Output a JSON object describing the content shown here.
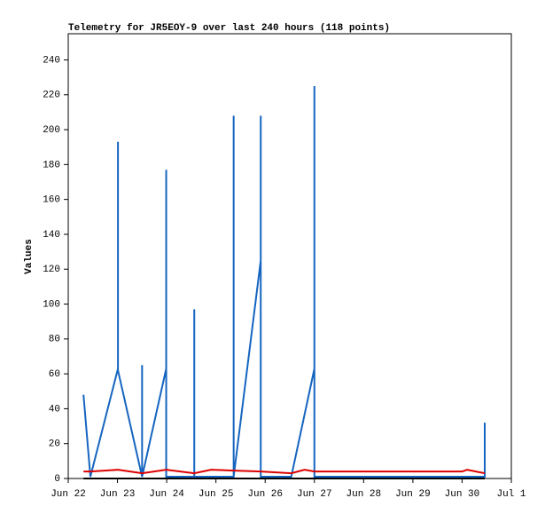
{
  "chart_data": {
    "type": "line",
    "title": "Telemetry for JR5EOY-9 over last 240 hours (118 points)",
    "y_label": "Values",
    "xlim": [
      0,
      9
    ],
    "ylim": [
      0,
      255
    ],
    "xticks": [
      {
        "value": 0,
        "label": "Jun 22"
      },
      {
        "value": 1,
        "label": "Jun 23"
      },
      {
        "value": 2,
        "label": "Jun 24"
      },
      {
        "value": 3,
        "label": "Jun 25"
      },
      {
        "value": 4,
        "label": "Jun 26"
      },
      {
        "value": 5,
        "label": "Jun 27"
      },
      {
        "value": 6,
        "label": "Jun 28"
      },
      {
        "value": 7,
        "label": "Jun 29"
      },
      {
        "value": 8,
        "label": "Jun 30"
      },
      {
        "value": 9,
        "label": "Jul 1"
      }
    ],
    "yticks": [
      0,
      20,
      40,
      60,
      80,
      100,
      120,
      140,
      160,
      180,
      200,
      220,
      240
    ],
    "series": [
      {
        "color": "#1565c0",
        "x": [
          0.31,
          0.45,
          1.01,
          1.01,
          1.01,
          1.5,
          1.5,
          1.5,
          1.99,
          1.99,
          1.99,
          2.56,
          2.56,
          2.56,
          3.36,
          3.36,
          3.36,
          3.91,
          3.91,
          3.91,
          4.53,
          5.0,
          5.0,
          5.0,
          8.46,
          8.46
        ],
        "values": [
          48,
          1,
          63,
          193,
          62,
          1,
          65,
          1,
          63,
          177,
          1,
          1,
          97,
          1,
          1,
          208,
          1,
          125,
          208,
          1,
          1,
          63,
          225,
          1,
          1,
          32
        ]
      },
      {
        "color": "#dd0000",
        "x": [
          0.31,
          0.45,
          1.01,
          1.5,
          1.99,
          2.56,
          2.9,
          3.91,
          4.53,
          4.8,
          5.0,
          8.0,
          8.1,
          8.46
        ],
        "values": [
          4,
          4,
          5,
          3,
          5,
          3,
          5,
          4,
          3,
          5,
          4,
          4,
          5,
          3
        ]
      },
      {
        "color": "#000000",
        "x": [
          0.31,
          8.46
        ],
        "values": [
          0,
          0
        ]
      }
    ]
  }
}
